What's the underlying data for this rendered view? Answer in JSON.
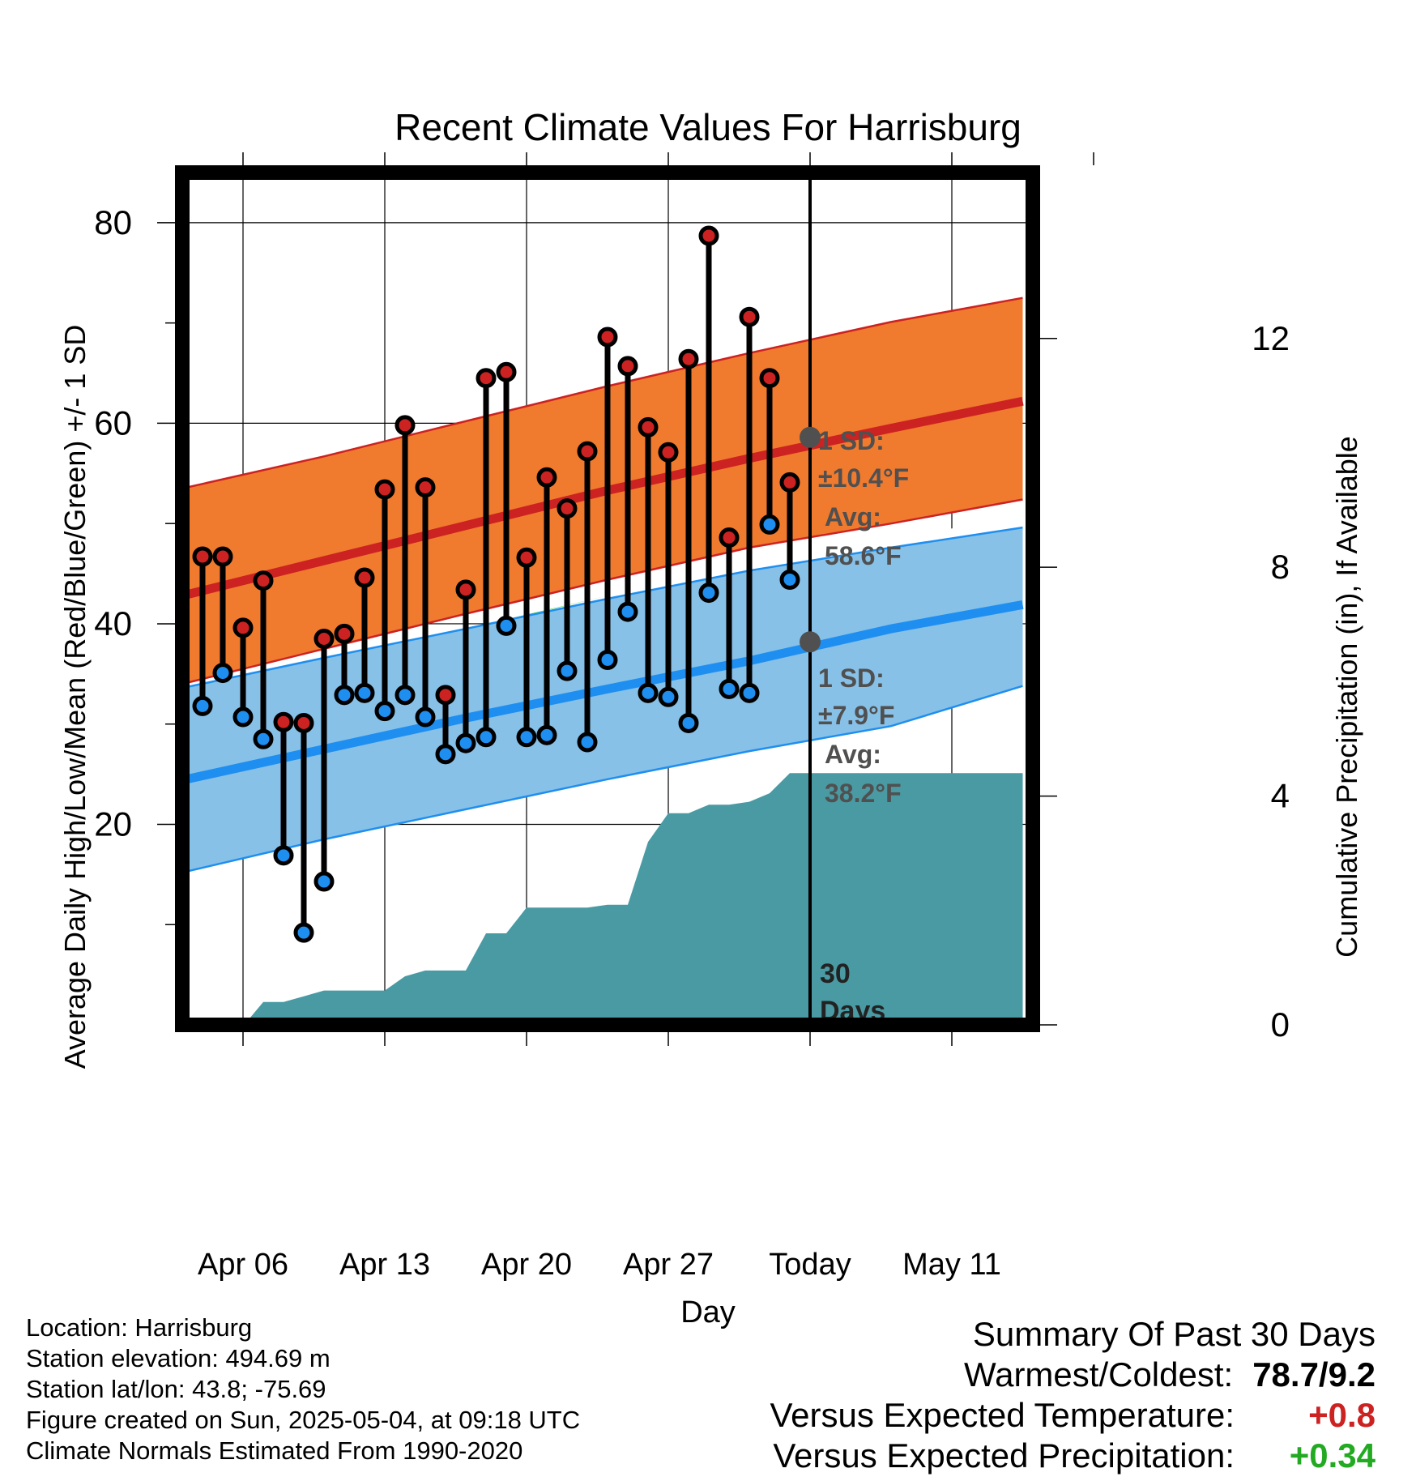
{
  "chart_data": {
    "type": "line",
    "title": "Recent Climate Values For Harrisburg",
    "xlabel": "Day",
    "ylabel": "Average Daily High/Low/Mean (Red/Blue/Green) +/- 1 SD",
    "y2label": "Cumulative Precipitation (in), If Available",
    "xlim": [
      0,
      42
    ],
    "ylim": [
      0,
      85
    ],
    "y2lim": [
      0,
      14.9
    ],
    "x_ticks": [
      {
        "x": 3,
        "label": "Apr 06"
      },
      {
        "x": 10,
        "label": "Apr 13"
      },
      {
        "x": 17,
        "label": "Apr 20"
      },
      {
        "x": 24,
        "label": "Apr 27"
      },
      {
        "x": 31,
        "label": "Today"
      },
      {
        "x": 38,
        "label": "May 11"
      }
    ],
    "y_ticks": [
      20,
      40,
      60,
      80
    ],
    "y2_ticks": [
      0,
      4,
      8,
      12
    ],
    "grid": true,
    "today_x": 31,
    "today_label": [
      "30",
      "Days"
    ],
    "normals": {
      "x": [
        0,
        7,
        14,
        21,
        28,
        35,
        41.5
      ],
      "high_mean": [
        42.8,
        46.3,
        49.8,
        53.3,
        56.5,
        59.5,
        62.2
      ],
      "high_upper": [
        53.5,
        56.7,
        60.2,
        63.7,
        67.0,
        70.1,
        72.5
      ],
      "high_lower": [
        34.0,
        37.5,
        41.0,
        44.4,
        47.6,
        50.0,
        52.4
      ],
      "low_mean": [
        24.4,
        27.5,
        30.6,
        33.5,
        36.3,
        39.5,
        41.9
      ],
      "low_upper": [
        33.6,
        36.6,
        39.5,
        42.5,
        45.3,
        47.6,
        49.6
      ],
      "low_lower": [
        15.2,
        18.5,
        21.5,
        24.5,
        27.3,
        29.8,
        33.8
      ]
    },
    "today_high_normal": {
      "sd": "1 SD:",
      "sd_value": "±10.4°F",
      "avg_label": "Avg:",
      "avg_value": "58.6°F",
      "y": 58.6
    },
    "today_low_normal": {
      "sd": "1 SD:",
      "sd_value": "±7.9°F",
      "avg_label": "Avg:",
      "avg_value": "38.2°F",
      "y": 38.2
    },
    "series": [
      {
        "name": "High",
        "x": [
          1,
          2,
          3,
          4,
          5,
          6,
          7,
          8,
          9,
          10,
          11,
          12,
          13,
          14,
          15,
          16,
          17,
          18,
          19,
          20,
          21,
          22,
          23,
          24,
          25,
          26,
          27,
          28,
          29,
          30
        ],
        "values": [
          46.7,
          46.7,
          39.6,
          44.3,
          30.2,
          30.1,
          38.5,
          39.0,
          44.6,
          53.4,
          59.8,
          53.6,
          32.9,
          43.4,
          64.5,
          65.1,
          46.6,
          54.6,
          51.5,
          57.2,
          68.6,
          65.7,
          59.6,
          57.1,
          66.4,
          78.7,
          48.6,
          70.6,
          64.5,
          54.1
        ]
      },
      {
        "name": "Low",
        "x": [
          1,
          2,
          3,
          4,
          5,
          6,
          7,
          8,
          9,
          10,
          11,
          12,
          13,
          14,
          15,
          16,
          17,
          18,
          19,
          20,
          21,
          22,
          23,
          24,
          25,
          26,
          27,
          28,
          29,
          30
        ],
        "values": [
          31.8,
          35.1,
          30.7,
          28.5,
          16.9,
          9.2,
          14.3,
          32.9,
          33.1,
          31.3,
          32.9,
          30.7,
          27.0,
          28.1,
          28.7,
          39.8,
          28.7,
          28.9,
          35.3,
          28.2,
          36.4,
          41.2,
          33.1,
          32.7,
          30.1,
          43.1,
          33.5,
          33.1,
          49.9,
          44.4
        ]
      },
      {
        "name": "Cumulative Precipitation",
        "x": [
          0,
          3,
          3.1,
          4,
          5,
          6,
          7,
          8,
          9,
          10,
          11,
          12,
          13,
          14,
          15,
          16,
          17,
          18,
          19,
          20,
          21,
          22,
          23,
          24,
          25,
          26,
          27,
          28,
          29,
          30,
          31,
          41.5
        ],
        "values": [
          0,
          0,
          0.02,
          0.4,
          0.4,
          0.5,
          0.6,
          0.6,
          0.6,
          0.6,
          0.85,
          0.95,
          0.95,
          0.95,
          1.6,
          1.6,
          2.05,
          2.05,
          2.05,
          2.05,
          2.1,
          2.1,
          3.2,
          3.7,
          3.7,
          3.85,
          3.85,
          3.9,
          4.05,
          4.4,
          4.4,
          4.4
        ]
      }
    ]
  },
  "meta": {
    "location": "Location: Harrisburg",
    "elevation": "Station elevation: 494.69 m",
    "latlon": "Station lat/lon: 43.8; -75.69",
    "created": "Figure created on Sun, 2025-05-04, at 09:18 UTC",
    "normals": "Climate Normals Estimated From 1990-2020"
  },
  "summary": {
    "title": "Summary Of Past 30 Days",
    "warmest_label": "Warmest/Coldest:",
    "warmest_value": "78.7/9.2",
    "temp_label": "Versus Expected Temperature:",
    "temp_value": "+0.8",
    "temp_color": "#cc2222",
    "precip_label": "Versus Expected Precipitation:",
    "precip_value": "+0.34",
    "precip_color": "#22aa22"
  },
  "colors": {
    "high_band": "#f07a2e",
    "high_line": "#cc2222",
    "low_band": "#88c1e8",
    "low_line": "#1e8ff0",
    "mean_band": "#00cc00",
    "precip": "#4a9aa3",
    "high_dot": "#cc2222",
    "low_dot": "#1e8ff0",
    "annot": "#505050"
  }
}
